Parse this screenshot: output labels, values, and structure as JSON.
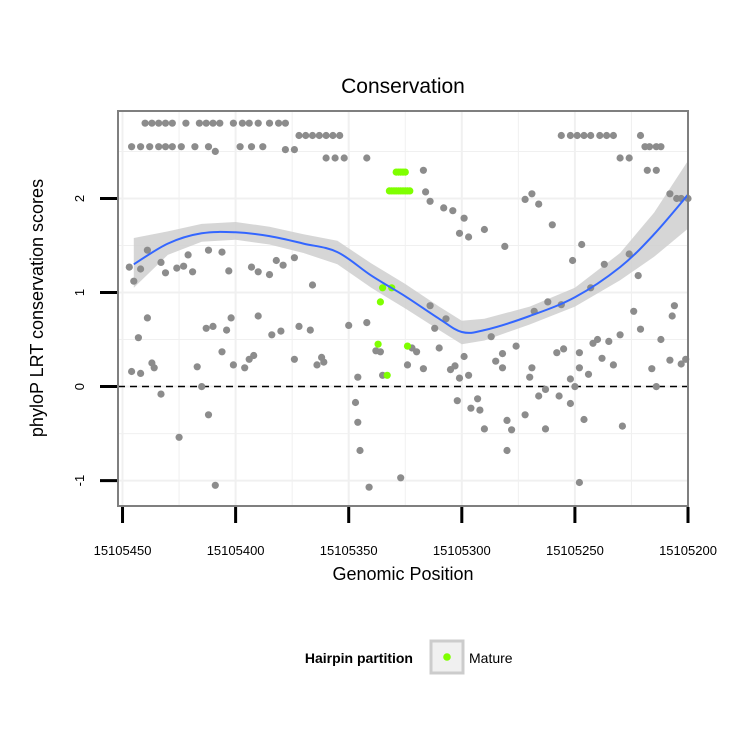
{
  "chart_data": {
    "type": "scatter",
    "title": "Conservation",
    "xlabel": "Genomic Position",
    "ylabel": "phyloP LRT conservation scores",
    "x_reversed": true,
    "xlim": [
      15105200,
      15105452
    ],
    "ylim": [
      -1.27,
      2.93
    ],
    "x_ticks": [
      15105450,
      15105400,
      15105350,
      15105300,
      15105250,
      15105200
    ],
    "x_tick_labels": [
      "15105450",
      "15105400",
      "15105350",
      "15105300",
      "15105250",
      "15105200"
    ],
    "y_ticks": [
      -1,
      0,
      1,
      2
    ],
    "y_tick_labels": [
      "-1",
      "0",
      "1",
      "2"
    ],
    "grid": true,
    "reference_line": {
      "y": 0,
      "style": "dashed",
      "color": "#000000"
    },
    "colors": {
      "other_points": "#8c8c8c",
      "mature_points": "#7fff00",
      "smooth_line": "#3366ff",
      "confidence_band": "#cfcfcf",
      "panel_border": "#7f7f7f",
      "grid": "#f0f0f0"
    },
    "legend": {
      "title": "Hairpin partition",
      "position": "bottom",
      "entries": [
        {
          "label": "Mature",
          "color": "#7fff00"
        }
      ]
    },
    "smooth_fit": {
      "x": [
        15105445,
        15105430,
        15105415,
        15105400,
        15105385,
        15105370,
        15105355,
        15105340,
        15105325,
        15105310,
        15105300,
        15105290,
        15105270,
        15105250,
        15105230,
        15105215,
        15105200
      ],
      "y": [
        1.3,
        1.52,
        1.63,
        1.64,
        1.6,
        1.52,
        1.43,
        1.18,
        0.96,
        0.72,
        0.58,
        0.6,
        0.75,
        0.95,
        1.27,
        1.62,
        2.04
      ],
      "lower": [
        1.05,
        1.4,
        1.54,
        1.56,
        1.51,
        1.42,
        1.3,
        1.05,
        0.83,
        0.6,
        0.45,
        0.49,
        0.66,
        0.85,
        1.13,
        1.38,
        1.68
      ],
      "upper": [
        1.58,
        1.65,
        1.73,
        1.75,
        1.7,
        1.62,
        1.55,
        1.31,
        1.09,
        0.85,
        0.7,
        0.72,
        0.85,
        1.05,
        1.42,
        1.85,
        2.4
      ]
    },
    "series": [
      {
        "name": "",
        "color": "#8c8c8c",
        "points": [
          [
            15105440,
            2.8
          ],
          [
            15105437,
            2.8
          ],
          [
            15105434,
            2.8
          ],
          [
            15105431,
            2.8
          ],
          [
            15105428,
            2.8
          ],
          [
            15105422,
            2.8
          ],
          [
            15105416,
            2.8
          ],
          [
            15105413,
            2.8
          ],
          [
            15105410,
            2.8
          ],
          [
            15105407,
            2.8
          ],
          [
            15105401,
            2.8
          ],
          [
            15105397,
            2.8
          ],
          [
            15105394,
            2.8
          ],
          [
            15105390,
            2.8
          ],
          [
            15105385,
            2.8
          ],
          [
            15105381,
            2.8
          ],
          [
            15105378,
            2.8
          ],
          [
            15105446,
            2.55
          ],
          [
            15105442,
            2.55
          ],
          [
            15105438,
            2.55
          ],
          [
            15105434,
            2.55
          ],
          [
            15105431,
            2.55
          ],
          [
            15105428,
            2.55
          ],
          [
            15105424,
            2.55
          ],
          [
            15105418,
            2.55
          ],
          [
            15105412,
            2.55
          ],
          [
            15105398,
            2.55
          ],
          [
            15105393,
            2.55
          ],
          [
            15105388,
            2.55
          ],
          [
            15105378,
            2.52
          ],
          [
            15105374,
            2.52
          ],
          [
            15105409,
            2.5
          ],
          [
            15105372,
            2.67
          ],
          [
            15105369,
            2.67
          ],
          [
            15105366,
            2.67
          ],
          [
            15105363,
            2.67
          ],
          [
            15105360,
            2.67
          ],
          [
            15105357,
            2.67
          ],
          [
            15105354,
            2.67
          ],
          [
            15105360,
            2.43
          ],
          [
            15105356,
            2.43
          ],
          [
            15105352,
            2.43
          ],
          [
            15105342,
            2.43
          ],
          [
            15105317,
            2.3
          ],
          [
            15105316,
            2.07
          ],
          [
            15105314,
            1.97
          ],
          [
            15105308,
            1.9
          ],
          [
            15105304,
            1.87
          ],
          [
            15105299,
            1.79
          ],
          [
            15105301,
            1.63
          ],
          [
            15105297,
            1.59
          ],
          [
            15105290,
            1.67
          ],
          [
            15105281,
            1.49
          ],
          [
            15105272,
            1.99
          ],
          [
            15105269,
            2.05
          ],
          [
            15105266,
            1.94
          ],
          [
            15105260,
            1.72
          ],
          [
            15105251,
            1.34
          ],
          [
            15105247,
            1.51
          ],
          [
            15105237,
            1.3
          ],
          [
            15105226,
            1.41
          ],
          [
            15105256,
            2.67
          ],
          [
            15105252,
            2.67
          ],
          [
            15105249,
            2.67
          ],
          [
            15105246,
            2.67
          ],
          [
            15105243,
            2.67
          ],
          [
            15105239,
            2.67
          ],
          [
            15105236,
            2.67
          ],
          [
            15105233,
            2.67
          ],
          [
            15105221,
            2.67
          ],
          [
            15105219,
            2.55
          ],
          [
            15105217,
            2.55
          ],
          [
            15105214,
            2.55
          ],
          [
            15105212,
            2.55
          ],
          [
            15105230,
            2.43
          ],
          [
            15105226,
            2.43
          ],
          [
            15105218,
            2.3
          ],
          [
            15105214,
            2.3
          ],
          [
            15105208,
            2.05
          ],
          [
            15105205,
            2.0
          ],
          [
            15105203,
            2.0
          ],
          [
            15105200,
            2.0
          ],
          [
            15105447,
            1.27
          ],
          [
            15105445,
            1.12
          ],
          [
            15105442,
            1.25
          ],
          [
            15105439,
            1.45
          ],
          [
            15105433,
            1.32
          ],
          [
            15105431,
            1.21
          ],
          [
            15105426,
            1.26
          ],
          [
            15105423,
            1.28
          ],
          [
            15105421,
            1.4
          ],
          [
            15105419,
            1.22
          ],
          [
            15105412,
            1.45
          ],
          [
            15105406,
            1.43
          ],
          [
            15105403,
            1.23
          ],
          [
            15105393,
            1.27
          ],
          [
            15105390,
            1.22
          ],
          [
            15105385,
            1.19
          ],
          [
            15105382,
            1.34
          ],
          [
            15105379,
            1.29
          ],
          [
            15105374,
            1.37
          ],
          [
            15105366,
            1.08
          ],
          [
            15105443,
            0.52
          ],
          [
            15105439,
            0.73
          ],
          [
            15105437,
            0.25
          ],
          [
            15105436,
            0.2
          ],
          [
            15105417,
            0.21
          ],
          [
            15105413,
            0.62
          ],
          [
            15105410,
            0.64
          ],
          [
            15105406,
            0.37
          ],
          [
            15105404,
            0.6
          ],
          [
            15105402,
            0.73
          ],
          [
            15105401,
            0.23
          ],
          [
            15105396,
            0.2
          ],
          [
            15105394,
            0.29
          ],
          [
            15105392,
            0.33
          ],
          [
            15105390,
            0.75
          ],
          [
            15105384,
            0.55
          ],
          [
            15105380,
            0.59
          ],
          [
            15105374,
            0.29
          ],
          [
            15105372,
            0.64
          ],
          [
            15105367,
            0.6
          ],
          [
            15105364,
            0.23
          ],
          [
            15105362,
            0.31
          ],
          [
            15105361,
            0.26
          ],
          [
            15105350,
            0.65
          ],
          [
            15105446,
            0.16
          ],
          [
            15105442,
            0.14
          ],
          [
            15105433,
            -0.08
          ],
          [
            15105425,
            -0.54
          ],
          [
            15105415,
            0.0
          ],
          [
            15105412,
            -0.3
          ],
          [
            15105409,
            -1.05
          ],
          [
            15105347,
            -0.17
          ],
          [
            15105346,
            -0.38
          ],
          [
            15105345,
            -0.68
          ],
          [
            15105346,
            0.1
          ],
          [
            15105342,
            0.68
          ],
          [
            15105341,
            -1.07
          ],
          [
            15105338,
            0.38
          ],
          [
            15105336,
            0.37
          ],
          [
            15105335,
            0.12
          ],
          [
            15105327,
            -0.97
          ],
          [
            15105324,
            0.23
          ],
          [
            15105322,
            0.41
          ],
          [
            15105320,
            0.37
          ],
          [
            15105317,
            0.19
          ],
          [
            15105314,
            0.86
          ],
          [
            15105312,
            0.62
          ],
          [
            15105310,
            0.41
          ],
          [
            15105307,
            0.72
          ],
          [
            15105305,
            0.18
          ],
          [
            15105303,
            0.22
          ],
          [
            15105301,
            0.09
          ],
          [
            15105299,
            0.32
          ],
          [
            15105297,
            0.12
          ],
          [
            15105296,
            -0.23
          ],
          [
            15105293,
            -0.13
          ],
          [
            15105292,
            -0.25
          ],
          [
            15105287,
            0.53
          ],
          [
            15105285,
            0.27
          ],
          [
            15105282,
            0.2
          ],
          [
            15105280,
            -0.36
          ],
          [
            15105278,
            -0.46
          ],
          [
            15105276,
            0.43
          ],
          [
            15105272,
            -0.3
          ],
          [
            15105270,
            0.1
          ],
          [
            15105269,
            0.2
          ],
          [
            15105266,
            -0.1
          ],
          [
            15105263,
            -0.45
          ],
          [
            15105258,
            0.36
          ],
          [
            15105255,
            0.4
          ],
          [
            15105252,
            0.08
          ],
          [
            15105250,
            0.0
          ],
          [
            15105248,
            0.2
          ],
          [
            15105246,
            -0.35
          ],
          [
            15105244,
            0.13
          ],
          [
            15105242,
            0.46
          ],
          [
            15105240,
            0.5
          ],
          [
            15105238,
            0.3
          ],
          [
            15105235,
            0.48
          ],
          [
            15105233,
            0.23
          ],
          [
            15105229,
            -0.42
          ],
          [
            15105224,
            0.8
          ],
          [
            15105221,
            0.61
          ],
          [
            15105216,
            0.19
          ],
          [
            15105214,
            0.0
          ],
          [
            15105212,
            0.5
          ],
          [
            15105208,
            0.28
          ],
          [
            15105206,
            0.86
          ],
          [
            15105203,
            0.24
          ],
          [
            15105201,
            0.29
          ],
          [
            15105207,
            0.75
          ],
          [
            15105263,
            -0.03
          ],
          [
            15105257,
            -0.1
          ],
          [
            15105252,
            -0.18
          ],
          [
            15105248,
            0.36
          ],
          [
            15105282,
            0.35
          ],
          [
            15105290,
            -0.45
          ],
          [
            15105280,
            -0.68
          ],
          [
            15105302,
            -0.15
          ],
          [
            15105262,
            0.9
          ],
          [
            15105256,
            0.87
          ],
          [
            15105268,
            0.8
          ],
          [
            15105230,
            0.55
          ],
          [
            15105222,
            1.18
          ],
          [
            15105243,
            1.05
          ],
          [
            15105248,
            -1.02
          ]
        ]
      },
      {
        "name": "Mature",
        "color": "#7fff00",
        "points": [
          [
            15105329,
            2.28
          ],
          [
            15105328,
            2.28
          ],
          [
            15105327,
            2.28
          ],
          [
            15105326,
            2.28
          ],
          [
            15105325,
            2.28
          ],
          [
            15105332,
            2.08
          ],
          [
            15105331,
            2.08
          ],
          [
            15105330,
            2.08
          ],
          [
            15105329,
            2.08
          ],
          [
            15105328,
            2.08
          ],
          [
            15105327,
            2.08
          ],
          [
            15105326,
            2.08
          ],
          [
            15105325,
            2.08
          ],
          [
            15105324,
            2.08
          ],
          [
            15105323,
            2.08
          ],
          [
            15105335,
            1.05
          ],
          [
            15105331,
            1.05
          ],
          [
            15105336,
            0.9
          ],
          [
            15105337,
            0.45
          ],
          [
            15105324,
            0.43
          ],
          [
            15105333,
            0.12
          ]
        ]
      }
    ]
  }
}
